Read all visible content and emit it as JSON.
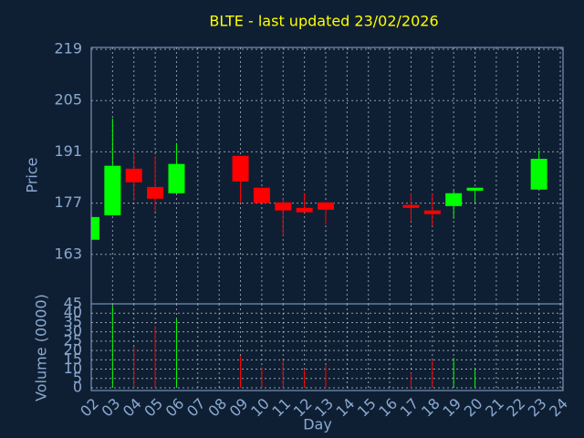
{
  "chart_data": {
    "type": "candlestick",
    "title": "BLTE - last updated 23/02/2026",
    "xlabel": "Day",
    "ylabel": "Price",
    "categories": [
      "02",
      "03",
      "04",
      "05",
      "06",
      "07",
      "08",
      "09",
      "10",
      "11",
      "12",
      "13",
      "14",
      "15",
      "16",
      "17",
      "18",
      "19",
      "20",
      "21",
      "22",
      "23",
      "24"
    ],
    "open": [
      167,
      173.7,
      186.4,
      181.4,
      179.7,
      null,
      null,
      189.9,
      181.2,
      177.2,
      175.7,
      177.2,
      null,
      null,
      null,
      176.5,
      175,
      176.2,
      180.4,
      null,
      null,
      180.7,
      null
    ],
    "high": [
      173.2,
      200.1,
      190.9,
      189.9,
      193.4,
      null,
      null,
      189.9,
      181.2,
      178.2,
      179.7,
      177.2,
      null,
      null,
      null,
      179.7,
      179.7,
      180.4,
      181.2,
      null,
      null,
      191.4,
      null
    ],
    "low": [
      167,
      173.7,
      177.7,
      174.7,
      179.7,
      null,
      null,
      177.2,
      177,
      168,
      174.5,
      171.2,
      null,
      null,
      null,
      172,
      170.7,
      172.7,
      177.2,
      null,
      null,
      180.7,
      null
    ],
    "close": [
      173.2,
      187.2,
      182.7,
      178.2,
      187.7,
      null,
      null,
      182.9,
      177,
      175,
      174.5,
      175.2,
      null,
      null,
      null,
      175.7,
      174,
      179.7,
      181.2,
      null,
      null,
      189.1,
      null
    ],
    "up_color": "#00ff00",
    "down_color": "#ff0000",
    "ylim": [
      149.5,
      219.5
    ],
    "yticks": [
      163,
      177,
      191,
      205,
      219
    ],
    "grid": true,
    "volume": {
      "label": "Volume (0000)",
      "values": [
        0,
        44,
        22,
        33,
        37,
        null,
        null,
        17,
        11,
        15,
        10,
        12,
        null,
        null,
        null,
        8,
        15,
        16,
        10,
        null,
        null,
        0,
        null
      ],
      "ylim": [
        0,
        45
      ],
      "yticks": [
        0,
        5,
        10,
        15,
        20,
        25,
        30,
        35,
        40,
        45
      ]
    }
  }
}
